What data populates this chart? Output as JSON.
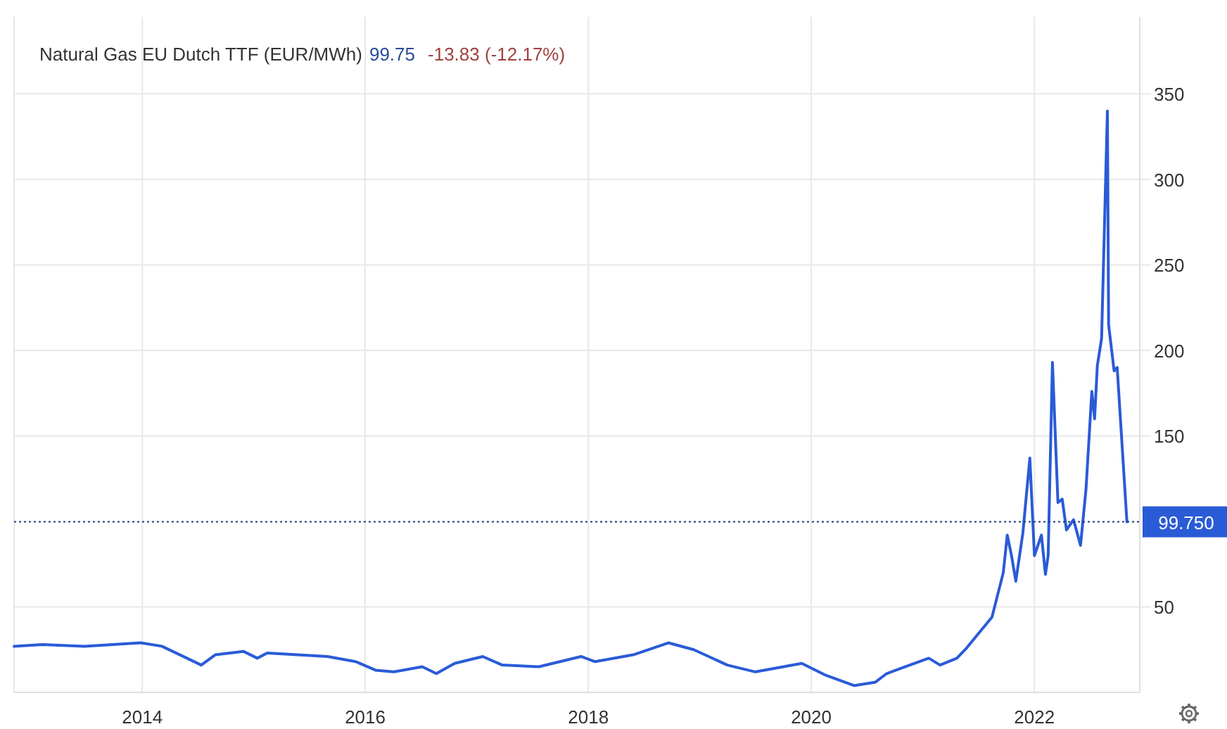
{
  "chart_data": {
    "type": "line",
    "title": "Natural Gas EU Dutch TTF (EUR/MWh)",
    "annotations": [
      "99.75",
      "-13.83 (-12.17%)"
    ],
    "x": [
      "2012-11-07",
      "2013-02-08",
      "2013-06-26",
      "2013-09-26",
      "2013-12-27",
      "2014-03-06",
      "2014-07-13",
      "2014-08-28",
      "2014-11-28",
      "2015-01-13",
      "2015-02-14",
      "2015-08-31",
      "2015-12-01",
      "2016-02-04",
      "2016-04-04",
      "2016-07-06",
      "2016-08-21",
      "2016-10-20",
      "2017-01-20",
      "2017-03-25",
      "2017-07-23",
      "2017-12-08",
      "2018-01-23",
      "2018-05-28",
      "2018-09-20",
      "2018-12-12",
      "2019-04-01",
      "2019-07-02",
      "2019-10-02",
      "2019-12-01",
      "2020-02-18",
      "2020-05-21",
      "2020-07-29",
      "2020-09-04",
      "2020-11-03",
      "2021-01-20",
      "2021-02-26",
      "2021-04-22",
      "2021-05-24",
      "2021-07-09",
      "2021-08-15",
      "2021-09-21",
      "2021-10-04",
      "2021-10-18",
      "2021-11-01",
      "2021-11-24",
      "2021-12-17",
      "2022-01-01",
      "2022-01-24",
      "2022-02-06",
      "2022-02-15",
      "2022-03-01",
      "2022-03-19",
      "2022-04-02",
      "2022-04-16",
      "2022-05-09",
      "2022-06-01",
      "2022-06-19",
      "2022-07-08",
      "2022-07-17",
      "2022-07-26",
      "2022-08-09",
      "2022-08-28",
      "2022-09-01",
      "2022-09-19",
      "2022-09-29",
      "2022-10-31"
    ],
    "series": [
      {
        "color": "#2a5bd7",
        "values": [
          27,
          28,
          27,
          28,
          29,
          27,
          16,
          22,
          24,
          20,
          23,
          21,
          18,
          13,
          12,
          15,
          11,
          17,
          21,
          16,
          15,
          21,
          18,
          22,
          29,
          25,
          16,
          12,
          15,
          17,
          10,
          4,
          6,
          11,
          15,
          20,
          16,
          20,
          26,
          36,
          44,
          70,
          92,
          80,
          65,
          93,
          137,
          80,
          92,
          69,
          80,
          193,
          111,
          113,
          95,
          101,
          86,
          119,
          176,
          160,
          191,
          207,
          340,
          215,
          188,
          190,
          99.75
        ]
      }
    ],
    "xlim": [
      "2012-11-07",
      "2022-12-12"
    ],
    "xticks": [
      {
        "value": "2014-01-01",
        "label": "2014"
      },
      {
        "value": "2016-01-01",
        "label": "2016"
      },
      {
        "value": "2018-01-01",
        "label": "2018"
      },
      {
        "value": "2020-01-01",
        "label": "2020"
      },
      {
        "value": "2022-01-01",
        "label": "2022"
      }
    ],
    "ylim": [
      0,
      395
    ],
    "yticks": [
      50,
      150,
      200,
      250,
      300,
      350
    ],
    "ref_lines": [
      {
        "axis": "y",
        "value": 99.75,
        "label": "99.750",
        "color": "#1f3a7a",
        "line_style": "dotted"
      }
    ],
    "grid": true
  }
}
